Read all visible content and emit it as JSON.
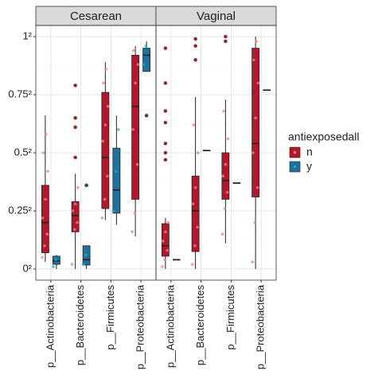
{
  "chart_data": {
    "type": "boxplot",
    "facets": [
      "Cesarean",
      "Vaginal"
    ],
    "categories": [
      "p__Actinobacteria",
      "p__Bacteroidetes",
      "p__Firmicutes",
      "p__Proteobacteria"
    ],
    "ylim": [
      -0.048,
      1.048
    ],
    "yticks": [
      {
        "value": 0,
        "label": "0²"
      },
      {
        "value": 0.25,
        "label": "0.25²"
      },
      {
        "value": 0.5,
        "label": "0.5²"
      },
      {
        "value": 0.75,
        "label": "0.75²"
      },
      {
        "value": 1,
        "label": "1²"
      }
    ],
    "grid": true,
    "legend_title": "antiexposedall",
    "legend_position": "right",
    "series": [
      {
        "name": "n",
        "color": "#b2182b",
        "point_color": "#f08080",
        "values": [
          [
            {
              "min": 0.03,
              "q1": 0.07,
              "median": 0.2,
              "q3": 0.36,
              "max": 0.66,
              "outliers": [],
              "points": [
                0.05,
                0.1,
                0.15,
                0.22,
                0.3,
                0.42,
                0.5,
                0.58
              ]
            },
            {
              "min": 0,
              "q1": 0.16,
              "median": 0.23,
              "q3": 0.29,
              "max": 0.41,
              "outliers": [
                0.48,
                0.61,
                0.65,
                0.79
              ],
              "points": [
                0.02,
                0.17,
                0.2,
                0.25,
                0.28,
                0.35
              ]
            },
            {
              "min": 0.21,
              "q1": 0.26,
              "median": 0.48,
              "q3": 0.76,
              "max": 0.89,
              "outliers": [],
              "points": [
                0.22,
                0.3,
                0.4,
                0.55,
                0.62,
                0.7,
                0.8,
                0.86
              ]
            },
            {
              "min": 0.14,
              "q1": 0.3,
              "median": 0.7,
              "q3": 0.92,
              "max": 0.96,
              "outliers": [],
              "points": [
                0.16,
                0.24,
                0.45,
                0.6,
                0.8,
                0.88,
                0.94
              ]
            }
          ],
          [
            {
              "min": 0,
              "q1": 0.055,
              "median": 0.1,
              "q3": 0.195,
              "max": 0.22,
              "outliers": [
                0.47,
                0.5,
                0.54,
                0.63,
                0.68,
                0.8,
                0.95
              ],
              "points": [
                0.01,
                0.04,
                0.08,
                0.12,
                0.16,
                0.2
              ]
            },
            {
              "min": 0,
              "q1": 0.075,
              "median": 0.25,
              "q3": 0.4,
              "max": 0.74,
              "outliers": [
                0.9,
                0.96,
                0.99
              ],
              "points": [
                0.02,
                0.1,
                0.18,
                0.28,
                0.35,
                0.5,
                0.62
              ]
            },
            {
              "min": 0.11,
              "q1": 0.3,
              "median": 0.38,
              "q3": 0.5,
              "max": 0.73,
              "outliers": [
                0.98,
                1.0
              ],
              "points": [
                0.15,
                0.26,
                0.33,
                0.4,
                0.45,
                0.56,
                0.68
              ]
            },
            {
              "min": 0,
              "q1": 0.31,
              "median": 0.54,
              "q3": 0.95,
              "max": 1.0,
              "outliers": [],
              "points": [
                0.03,
                0.2,
                0.35,
                0.5,
                0.65,
                0.8,
                0.9,
                0.98
              ]
            }
          ]
        ]
      },
      {
        "name": "y",
        "color": "#2171a0",
        "point_color": "#1ab0b8",
        "values": [
          [
            {
              "min": 0,
              "q1": 0.02,
              "median": 0.035,
              "q3": 0.055,
              "max": 0.06,
              "outliers": [],
              "points": [
                0.01,
                0.04
              ]
            },
            {
              "min": 0,
              "q1": 0.017,
              "median": 0.04,
              "q3": 0.1,
              "max": 0.1,
              "outliers": [
                0.36
              ],
              "points": [
                0.02,
                0.06
              ]
            },
            {
              "min": 0.19,
              "q1": 0.24,
              "median": 0.34,
              "q3": 0.52,
              "max": 0.66,
              "outliers": [],
              "points": [
                0.25,
                0.42,
                0.6
              ]
            },
            {
              "min": 0.85,
              "q1": 0.85,
              "median": 0.92,
              "q3": 0.95,
              "max": 0.98,
              "outliers": [
                0.66
              ],
              "points": [
                0.88,
                0.96
              ]
            }
          ],
          [
            {
              "min": 0.04,
              "q1": 0.04,
              "median": 0.04,
              "q3": 0.04,
              "max": 0.04,
              "outliers": [],
              "points": []
            },
            {
              "min": 0.51,
              "q1": 0.51,
              "median": 0.51,
              "q3": 0.51,
              "max": 0.51,
              "outliers": [],
              "points": []
            },
            {
              "min": 0.37,
              "q1": 0.37,
              "median": 0.37,
              "q3": 0.37,
              "max": 0.37,
              "outliers": [],
              "points": []
            },
            {
              "min": 0.77,
              "q1": 0.77,
              "median": 0.77,
              "q3": 0.77,
              "max": 0.77,
              "outliers": [],
              "points": []
            }
          ]
        ]
      }
    ]
  }
}
